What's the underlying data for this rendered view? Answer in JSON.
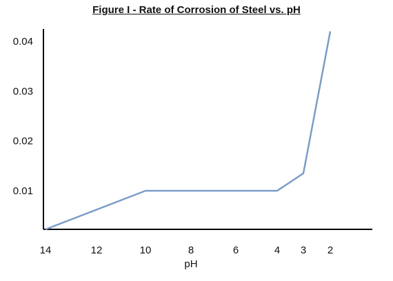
{
  "chart_data": {
    "type": "line",
    "title": "Figure I - Rate of Corrosion of Steel vs. pH",
    "xlabel": "pH",
    "ylabel": "",
    "x_tick_labels": [
      "14",
      "12",
      "10",
      "8",
      "6",
      "4",
      "3",
      "2"
    ],
    "y_tick_labels": [
      "0.01",
      "0.02",
      "0.03",
      "0.04"
    ],
    "ylim": [
      0,
      0.042
    ],
    "grid": false,
    "series": [
      {
        "color": "#7a9cc6",
        "points": [
          {
            "x": 14,
            "y": 0
          },
          {
            "x": 10,
            "y": 0.01
          },
          {
            "x": 4,
            "y": 0.01
          },
          {
            "x": 3,
            "y": 0.0135
          },
          {
            "x": 2,
            "y": 0.042
          }
        ]
      }
    ]
  }
}
